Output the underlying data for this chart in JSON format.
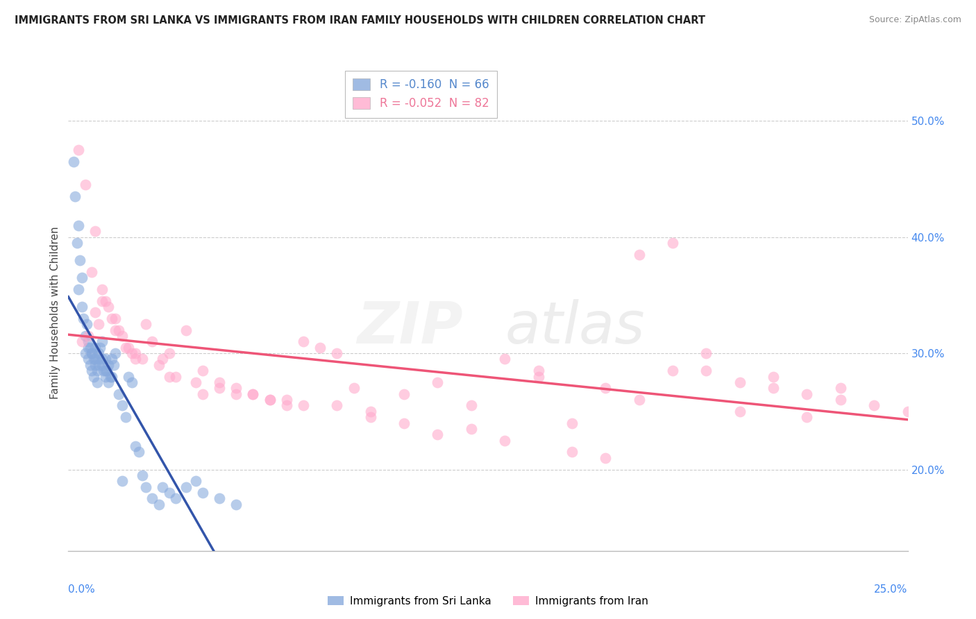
{
  "title": "IMMIGRANTS FROM SRI LANKA VS IMMIGRANTS FROM IRAN FAMILY HOUSEHOLDS WITH CHILDREN CORRELATION CHART",
  "source": "Source: ZipAtlas.com",
  "ylabel": "Family Households with Children",
  "xlim": [
    0.0,
    25.0
  ],
  "ylim": [
    13.0,
    54.0
  ],
  "legend_entries": [
    {
      "label": "R = -0.160  N = 66",
      "color": "#5588CC"
    },
    {
      "label": "R = -0.052  N = 82",
      "color": "#EE7799"
    }
  ],
  "sri_lanka_color": "#88AADD",
  "iran_color": "#FFAACC",
  "sri_lanka_trend_color": "#3355AA",
  "iran_trend_color": "#EE5577",
  "sri_lanka_x": [
    0.15,
    0.2,
    0.25,
    0.3,
    0.3,
    0.35,
    0.4,
    0.4,
    0.45,
    0.5,
    0.5,
    0.55,
    0.6,
    0.6,
    0.65,
    0.65,
    0.7,
    0.7,
    0.75,
    0.75,
    0.8,
    0.8,
    0.85,
    0.85,
    0.9,
    0.9,
    0.95,
    1.0,
    1.0,
    1.05,
    1.1,
    1.1,
    1.15,
    1.2,
    1.2,
    1.25,
    1.3,
    1.3,
    1.35,
    1.4,
    1.5,
    1.6,
    1.7,
    1.8,
    1.9,
    2.0,
    2.1,
    2.2,
    2.3,
    2.5,
    2.7,
    3.0,
    3.2,
    3.5,
    3.8,
    4.0,
    4.5,
    5.0,
    1.6,
    2.8,
    0.6,
    0.7,
    0.8,
    0.9,
    1.0,
    1.1
  ],
  "sri_lanka_y": [
    46.5,
    43.5,
    39.5,
    35.5,
    41.0,
    38.0,
    36.5,
    34.0,
    33.0,
    31.5,
    30.0,
    32.5,
    31.0,
    29.5,
    30.5,
    29.0,
    30.0,
    28.5,
    29.5,
    28.0,
    30.5,
    29.0,
    28.5,
    27.5,
    30.0,
    29.5,
    30.5,
    31.0,
    29.0,
    28.5,
    29.5,
    28.0,
    28.5,
    29.0,
    27.5,
    28.0,
    29.5,
    28.0,
    29.0,
    30.0,
    26.5,
    25.5,
    24.5,
    28.0,
    27.5,
    22.0,
    21.5,
    19.5,
    18.5,
    17.5,
    17.0,
    18.0,
    17.5,
    18.5,
    19.0,
    18.0,
    17.5,
    17.0,
    19.0,
    18.5,
    30.5,
    30.0,
    29.5,
    29.0,
    29.5,
    28.5
  ],
  "iran_x": [
    0.3,
    0.5,
    0.7,
    0.8,
    1.0,
    1.2,
    1.4,
    1.6,
    1.8,
    2.0,
    2.3,
    2.5,
    2.8,
    3.0,
    3.5,
    4.0,
    4.5,
    5.0,
    5.5,
    6.0,
    6.5,
    7.0,
    7.5,
    8.0,
    9.0,
    10.0,
    11.0,
    12.0,
    13.0,
    14.0,
    15.0,
    16.0,
    17.0,
    18.0,
    19.0,
    20.0,
    21.0,
    22.0,
    23.0,
    24.0,
    25.0,
    0.4,
    0.6,
    0.9,
    1.1,
    1.3,
    1.5,
    1.7,
    1.9,
    2.2,
    2.7,
    3.2,
    3.8,
    4.5,
    5.5,
    6.5,
    8.0,
    10.0,
    12.0,
    15.0,
    18.0,
    20.0,
    22.0,
    17.0,
    19.0,
    21.0,
    23.0,
    4.0,
    7.0,
    9.0,
    11.0,
    13.0,
    16.0,
    0.8,
    1.0,
    1.4,
    2.0,
    3.0,
    5.0,
    6.0,
    8.5,
    14.0
  ],
  "iran_y": [
    47.5,
    44.5,
    37.0,
    40.5,
    35.5,
    34.0,
    33.0,
    31.5,
    30.5,
    30.0,
    32.5,
    31.0,
    29.5,
    30.0,
    32.0,
    28.5,
    27.5,
    27.0,
    26.5,
    26.0,
    25.5,
    31.0,
    30.5,
    30.0,
    25.0,
    26.5,
    27.5,
    25.5,
    29.5,
    28.0,
    24.0,
    27.0,
    26.0,
    39.5,
    28.5,
    27.5,
    27.0,
    26.5,
    26.0,
    25.5,
    25.0,
    31.0,
    31.5,
    32.5,
    34.5,
    33.0,
    32.0,
    30.5,
    30.0,
    29.5,
    29.0,
    28.0,
    27.5,
    27.0,
    26.5,
    26.0,
    25.5,
    24.0,
    23.5,
    21.5,
    28.5,
    25.0,
    24.5,
    38.5,
    30.0,
    28.0,
    27.0,
    26.5,
    25.5,
    24.5,
    23.0,
    22.5,
    21.0,
    33.5,
    34.5,
    32.0,
    29.5,
    28.0,
    26.5,
    26.0,
    27.0,
    28.5
  ]
}
